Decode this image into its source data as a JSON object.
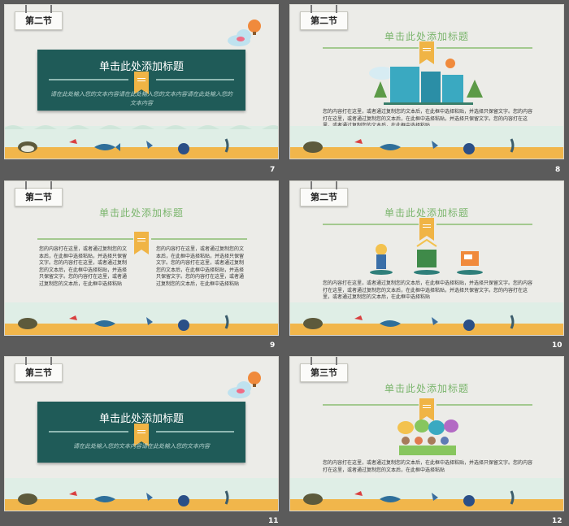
{
  "slides": [
    {
      "num": "7",
      "tag": "第二节",
      "layout": "card",
      "title": "单击此处添加标题",
      "sub": "请在此处输入您的文本内容请在此处输入您的文本内容请在此处输入您的文本内容"
    },
    {
      "num": "8",
      "tag": "第二节",
      "layout": "server",
      "title": "单击此处添加标题",
      "body": "您的内容打在这里，或者通过复制您的文本后，在此框中选择粘贴，并选择只保留文字。您的内容打在这里，或者通过复制您的文本后，在此框中选择粘贴，并选择只保留文字。您的内容打在这里，或者通过复制您的文本后，在此框中选择粘贴"
    },
    {
      "num": "9",
      "tag": "第二节",
      "layout": "columns",
      "title": "单击此处添加标题",
      "body_left": "您的内容打在这里，或者通过复制您的文本后，在此框中选择粘贴，并选择只保留文字。您的内容打在这里，或者通过复制您的文本后，在此框中选择粘贴，并选择只保留文字。您的内容打在这里，或者通过复制您的文本后，在此框中选择粘贴",
      "body_right": "您的内容打在这里，或者通过复制您的文本后，在此框中选择粘贴，并选择只保留文字。您的内容打在这里，或者通过复制您的文本后，在此框中选择粘贴，并选择只保留文字。您的内容打在这里，或者通过复制您的文本后，在此框中选择粘贴"
    },
    {
      "num": "10",
      "tag": "第二节",
      "layout": "icons",
      "title": "单击此处添加标题",
      "body": "您的内容打在这里，或者通过复制您的文本后，在此框中选择粘贴，并选择只保留文字。您的内容打在这里，或者通过复制您的文本后，在此框中选择粘贴，并选择只保留文字。您的内容打在这里，或者通过复制您的文本后，在此框中选择粘贴"
    },
    {
      "num": "11",
      "tag": "第三节",
      "layout": "card",
      "title": "单击此处添加标题",
      "sub": "请在此处输入您的文本内容请在此处输入您的文本内容"
    },
    {
      "num": "12",
      "tag": "第三节",
      "layout": "people",
      "title": "单击此处添加标题",
      "body": "您的内容打在这里，或者通过复制您的文本后，在此框中选择粘贴，并选择只保留文字。您的内容打在这里，或者通过复制您的文本后，在此框中选择粘贴"
    }
  ],
  "colors": {
    "card": "#1f5b58",
    "title_green": "#7ab56c",
    "ribbon": "#f0b445",
    "sand": "#f1b64b",
    "sea": "#dfeee6"
  },
  "icons": [
    "hot-air-balloon-icon",
    "cloud-icon",
    "server-icon",
    "turtle-icon",
    "fish-icon",
    "bird-icon",
    "ball-icon",
    "person-icon",
    "people-icon"
  ]
}
